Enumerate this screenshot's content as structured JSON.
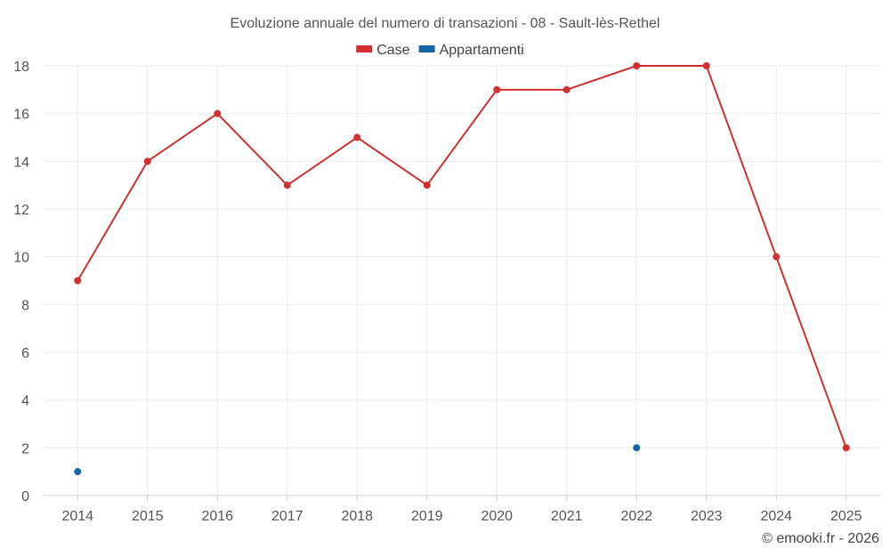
{
  "chart_data": {
    "type": "line",
    "title": "Evoluzione annuale del numero di transazioni - 08 - Sault-lès-Rethel",
    "x": [
      "2014",
      "2015",
      "2016",
      "2017",
      "2018",
      "2019",
      "2020",
      "2021",
      "2022",
      "2023",
      "2024",
      "2025"
    ],
    "ylim": [
      0,
      18
    ],
    "yticks": [
      0,
      2,
      4,
      6,
      8,
      10,
      12,
      14,
      16,
      18
    ],
    "grid": true,
    "legend_position": "top-center",
    "series": [
      {
        "name": "Case",
        "color": "#d32f2f",
        "values": [
          9,
          14,
          16,
          13,
          15,
          13,
          17,
          17,
          18,
          18,
          10,
          2
        ]
      },
      {
        "name": "Appartamenti",
        "color": "#1565a7",
        "values": [
          1,
          null,
          null,
          null,
          null,
          null,
          null,
          null,
          2,
          null,
          null,
          null
        ]
      }
    ]
  },
  "credit": "© emooki.fr - 2026"
}
